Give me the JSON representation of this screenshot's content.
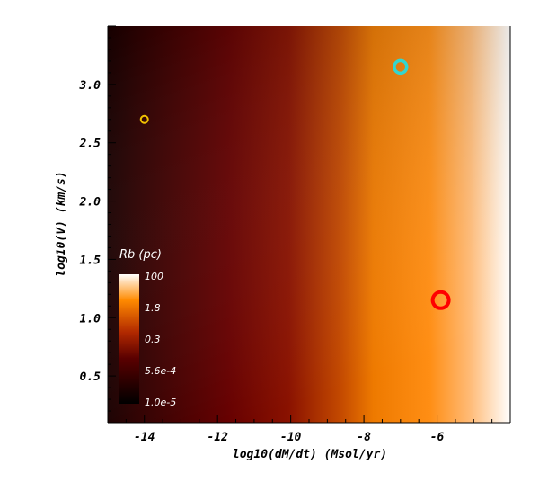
{
  "chart_data": {
    "type": "heatmap",
    "xlabel": "log10(dM/dt)  (Msol/yr)",
    "ylabel": "log10(V)  (km/s)",
    "xlim": [
      -15.0,
      -4.0
    ],
    "ylim": [
      0.1,
      3.5
    ],
    "x_ticks": [
      -14,
      -12,
      -10,
      -8,
      -6
    ],
    "x_tick_labels": [
      "-14",
      "-12",
      "-10",
      "-8",
      "-6"
    ],
    "y_ticks": [
      0.5,
      1.0,
      1.5,
      2.0,
      2.5,
      3.0
    ],
    "y_tick_labels": [
      "0.5",
      "1.0",
      "1.5",
      "2.0",
      "2.5",
      "3.0"
    ],
    "colorbar": {
      "title": "Rb (pc)",
      "labels": [
        "100",
        "1.8",
        "0.3",
        "5.6e-4",
        "1.0e-5"
      ],
      "colors": [
        "#000000",
        "#5a0000",
        "#b02800",
        "#ff8a00",
        "#ffffff"
      ]
    },
    "markers": [
      {
        "x": -14.0,
        "y": 2.7,
        "color": "#f2c200",
        "size": "small"
      },
      {
        "x": -7.0,
        "y": 3.15,
        "color": "#33d6cf",
        "size": "medium"
      },
      {
        "x": -5.9,
        "y": 1.15,
        "color": "#ff0000",
        "size": "large"
      }
    ]
  }
}
